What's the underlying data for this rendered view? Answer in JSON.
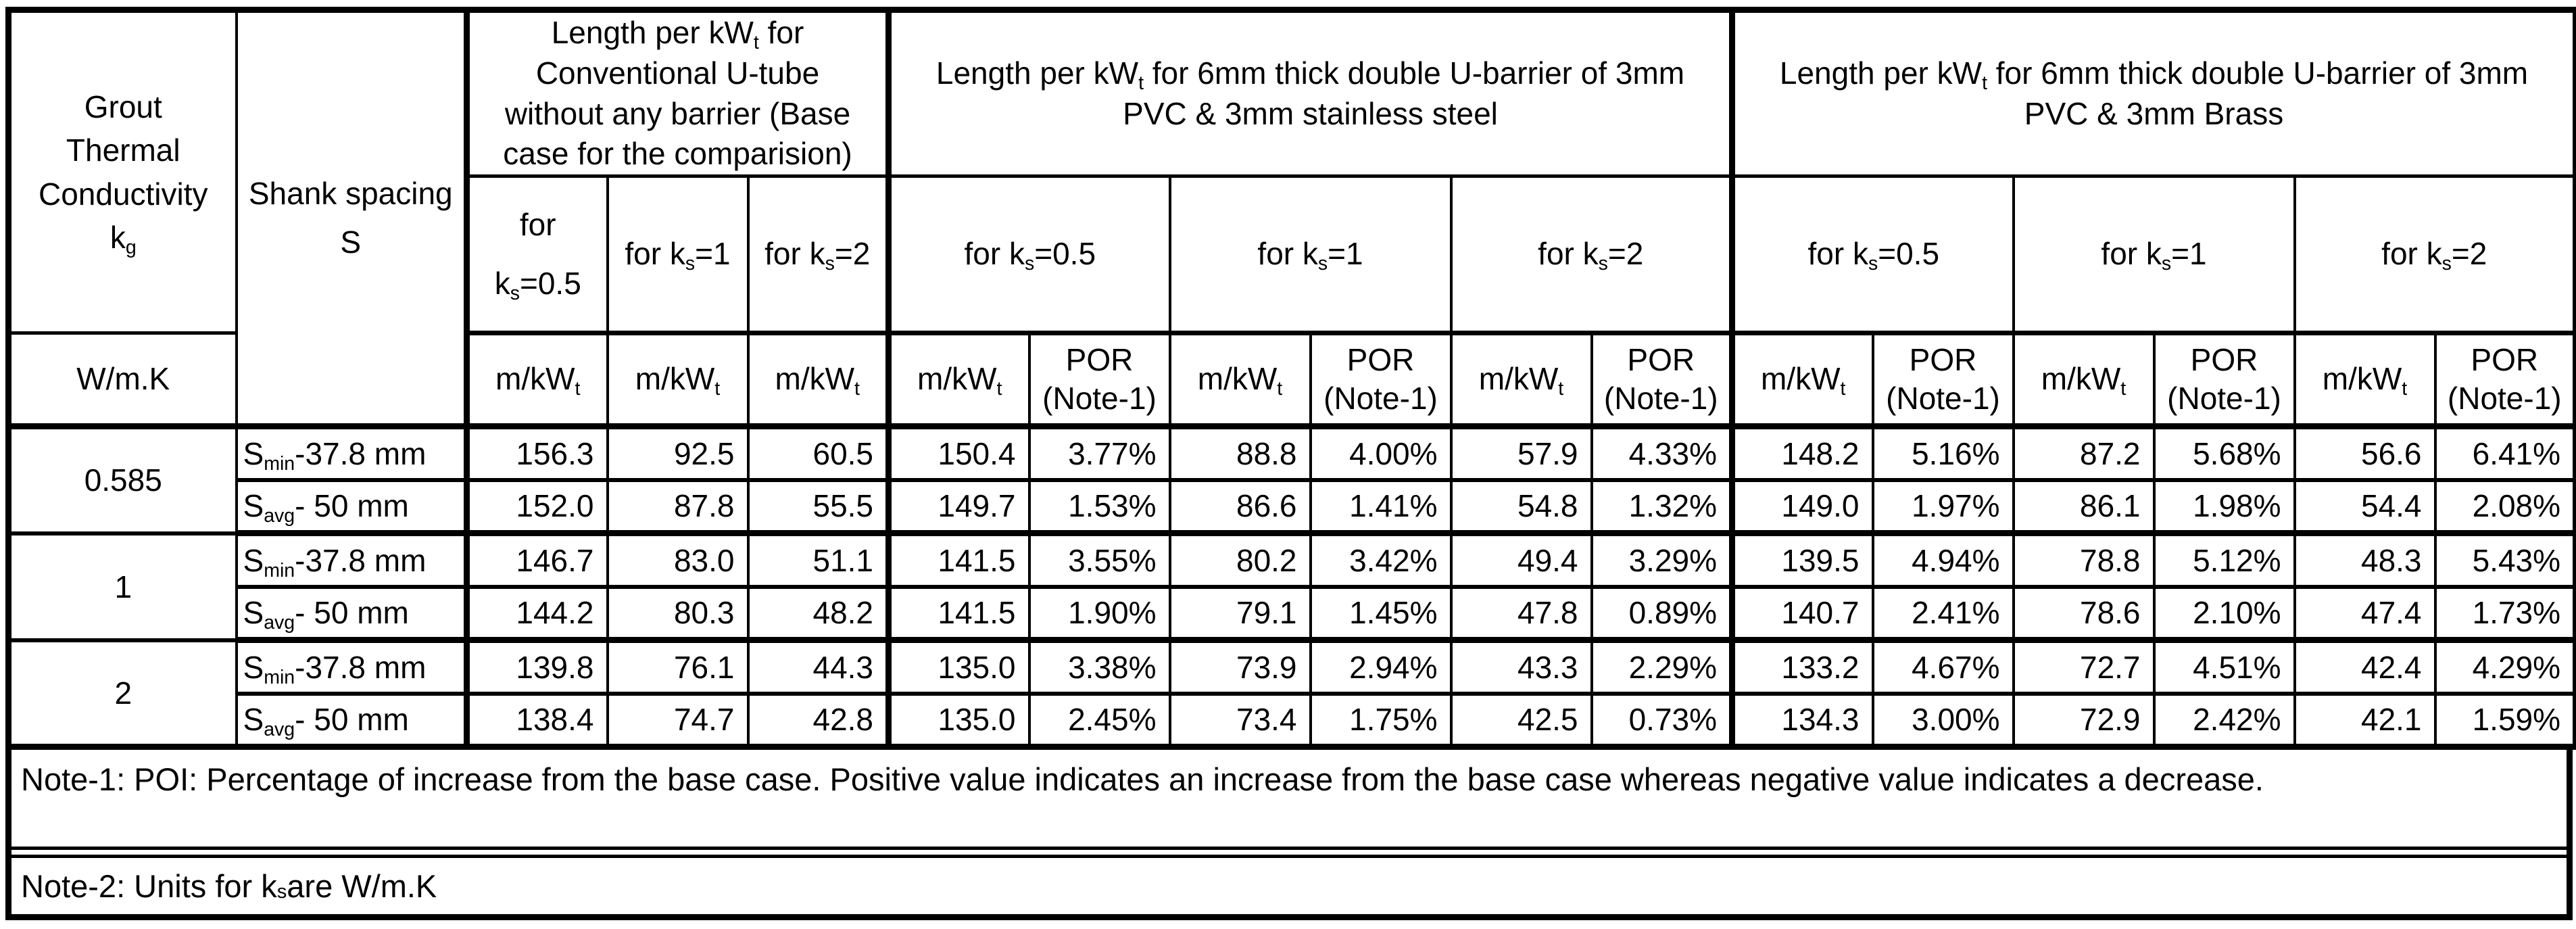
{
  "colors": {
    "background": "#ffffff",
    "border": "#000000",
    "text": "#000000"
  },
  "table": {
    "header": {
      "grout": "Grout\nThermal\nConductivity\nk_{g}",
      "grout_units": "W/m.K",
      "shank": "Shank spacing\nS",
      "unit_label": "m/kW_{t}",
      "por_label": "POR\n(Note-1)",
      "groups": [
        {
          "title": "Length per kW_{t} for\nConventional U-tube\nwithout any barrier (Base\ncase for the comparision)",
          "ks": [
            "for\nk_{s}=0.5",
            "for k_{s}=1",
            "for k_{s}=2"
          ]
        },
        {
          "title": "Length per kW_{t} for 6mm thick double U-barrier of 3mm\nPVC & 3mm stainless steel",
          "ks": [
            "for k_{s}=0.5",
            "for k_{s}=1",
            "for k_{s}=2"
          ]
        },
        {
          "title": "Length per kW_{t} for 6mm thick double U-barrier of 3mm\nPVC & 3mm Brass",
          "ks": [
            "for k_{s}=0.5",
            "for k_{s}=1",
            "for k_{s}=2"
          ]
        }
      ]
    },
    "rows": [
      {
        "kg": "0.585",
        "shank": "S_{min}-37.8 mm",
        "values": [
          "156.3",
          "92.5",
          "60.5",
          "150.4",
          "3.77%",
          "88.8",
          "4.00%",
          "57.9",
          "4.33%",
          "148.2",
          "5.16%",
          "87.2",
          "5.68%",
          "56.6",
          "6.41%"
        ]
      },
      {
        "shank": "S_{avg}- 50 mm",
        "values": [
          "152.0",
          "87.8",
          "55.5",
          "149.7",
          "1.53%",
          "86.6",
          "1.41%",
          "54.8",
          "1.32%",
          "149.0",
          "1.97%",
          "86.1",
          "1.98%",
          "54.4",
          "2.08%"
        ]
      },
      {
        "kg": "1",
        "shank": "S_{min}-37.8 mm",
        "values": [
          "146.7",
          "83.0",
          "51.1",
          "141.5",
          "3.55%",
          "80.2",
          "3.42%",
          "49.4",
          "3.29%",
          "139.5",
          "4.94%",
          "78.8",
          "5.12%",
          "48.3",
          "5.43%"
        ]
      },
      {
        "shank": "S_{avg}- 50 mm",
        "values": [
          "144.2",
          "80.3",
          "48.2",
          "141.5",
          "1.90%",
          "79.1",
          "1.45%",
          "47.8",
          "0.89%",
          "140.7",
          "2.41%",
          "78.6",
          "2.10%",
          "47.4",
          "1.73%"
        ]
      },
      {
        "kg": "2",
        "shank": "S_{min}-37.8 mm",
        "values": [
          "139.8",
          "76.1",
          "44.3",
          "135.0",
          "3.38%",
          "73.9",
          "2.94%",
          "43.3",
          "2.29%",
          "133.2",
          "4.67%",
          "72.7",
          "4.51%",
          "42.4",
          "4.29%"
        ]
      },
      {
        "shank": "S_{avg}- 50 mm",
        "values": [
          "138.4",
          "74.7",
          "42.8",
          "135.0",
          "2.45%",
          "73.4",
          "1.75%",
          "42.5",
          "0.73%",
          "134.3",
          "3.00%",
          "72.9",
          "2.42%",
          "42.1",
          "1.59%"
        ]
      }
    ],
    "notes": [
      "Note-1: POI: Percentage of increase from the base case. Positive value indicates an increase from the base case whereas negative value indicates a decrease.",
      "Note-2: Units for k_{s} are W/m.K"
    ]
  }
}
